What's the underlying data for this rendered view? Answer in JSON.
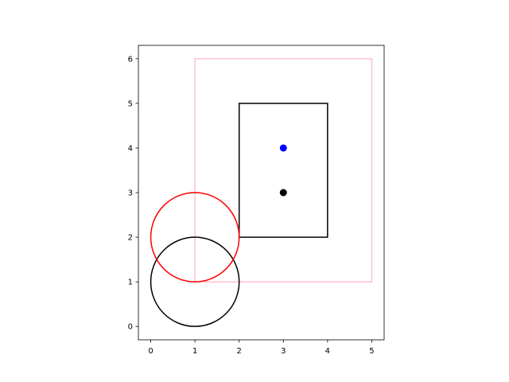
{
  "chart_data": {
    "type": "scatter",
    "xlim": [
      -0.28,
      5.28
    ],
    "ylim": [
      -0.3,
      6.3
    ],
    "x_ticks": [
      0,
      1,
      2,
      3,
      4,
      5
    ],
    "y_ticks": [
      0,
      1,
      2,
      3,
      4,
      5,
      6
    ],
    "x_tick_labels": [
      "0",
      "1",
      "2",
      "3",
      "4",
      "5"
    ],
    "y_tick_labels": [
      "0",
      "1",
      "2",
      "3",
      "4",
      "5",
      "6"
    ],
    "grid": false,
    "aspect": "equal",
    "points": [
      {
        "x": 3,
        "y": 4,
        "color": "#0000ff"
      },
      {
        "x": 3,
        "y": 3,
        "color": "#000000"
      }
    ],
    "rectangles": [
      {
        "x0": 1,
        "y0": 1,
        "x1": 5,
        "y1": 6,
        "color": "#ffc0cb"
      },
      {
        "x0": 2,
        "y0": 2,
        "x1": 4,
        "y1": 5,
        "color": "#000000"
      }
    ],
    "circles": [
      {
        "cx": 1,
        "cy": 1,
        "r": 1,
        "color": "#000000"
      },
      {
        "cx": 1,
        "cy": 2,
        "r": 1,
        "color": "#ff0000"
      }
    ]
  }
}
